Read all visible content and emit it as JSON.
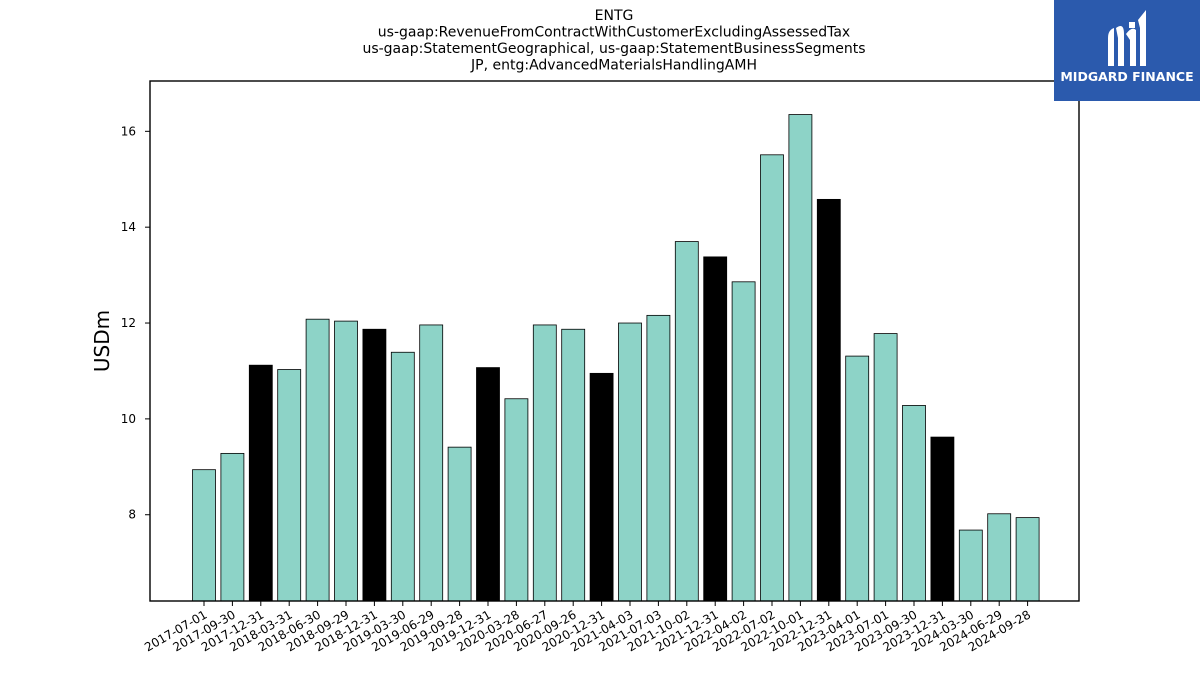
{
  "chart_data": {
    "type": "bar",
    "title_lines": [
      "ENTG",
      "us-gaap:RevenueFromContractWithCustomerExcludingAssessedTax",
      "us-gaap:StatementGeographical, us-gaap:StatementBusinessSegments",
      "JP, entg:AdvancedMaterialsHandlingAMH"
    ],
    "ylabel": "USDm",
    "xlabel": "",
    "ylim": [
      6.2,
      17.05
    ],
    "yticks": [
      8,
      10,
      12,
      14,
      16
    ],
    "categories": [
      "2017-07-01",
      "2017-09-30",
      "2017-12-31",
      "2018-03-31",
      "2018-06-30",
      "2018-09-29",
      "2018-12-31",
      "2019-03-30",
      "2019-06-29",
      "2019-09-28",
      "2019-12-31",
      "2020-03-28",
      "2020-06-27",
      "2020-09-26",
      "2020-12-31",
      "2021-04-03",
      "2021-07-03",
      "2021-10-02",
      "2021-12-31",
      "2022-04-02",
      "2022-07-02",
      "2022-10-01",
      "2022-12-31",
      "2023-04-01",
      "2023-07-01",
      "2023-09-30",
      "2023-12-31",
      "2024-03-30",
      "2024-06-29",
      "2024-09-28"
    ],
    "values": [
      8.94,
      9.28,
      11.12,
      11.03,
      12.08,
      12.04,
      11.87,
      11.39,
      11.96,
      9.41,
      11.07,
      10.42,
      11.96,
      11.87,
      10.95,
      12.0,
      12.16,
      13.7,
      13.38,
      12.86,
      15.51,
      16.35,
      14.58,
      11.31,
      11.78,
      10.28,
      9.62,
      7.68,
      8.02,
      7.94
    ],
    "highlight": [
      false,
      false,
      true,
      false,
      false,
      false,
      true,
      false,
      false,
      false,
      true,
      false,
      false,
      false,
      true,
      false,
      false,
      false,
      true,
      false,
      false,
      false,
      true,
      false,
      false,
      false,
      true,
      false,
      false,
      false
    ],
    "colors": {
      "bar": "#8dd3c7",
      "highlight": "#000000",
      "edge": "#000000"
    }
  },
  "logo": {
    "text": "MIDGARD FINANCE",
    "background": "#2b5aad"
  }
}
